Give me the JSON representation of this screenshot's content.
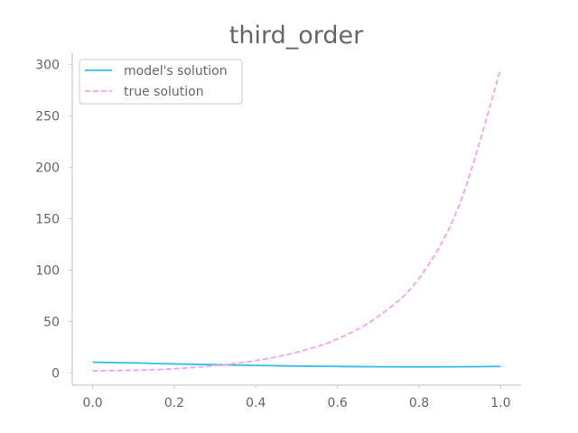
{
  "chart_data": {
    "type": "line",
    "title": "third_order",
    "xlabel": "",
    "ylabel": "",
    "xlim": [
      -0.05,
      1.05
    ],
    "ylim": [
      -12,
      312
    ],
    "xticks": [
      0.0,
      0.2,
      0.4,
      0.6,
      0.8,
      1.0
    ],
    "xtick_labels": [
      "0.0",
      "0.2",
      "0.4",
      "0.6",
      "0.8",
      "1.0"
    ],
    "yticks": [
      0,
      50,
      100,
      150,
      200,
      250,
      300
    ],
    "ytick_labels": [
      "0",
      "50",
      "100",
      "150",
      "200",
      "250",
      "300"
    ],
    "grid": false,
    "legend_position": "top-left",
    "series": [
      {
        "name": "model's solution",
        "color": "#33bbee",
        "style": "solid",
        "x": [
          0.0,
          0.1,
          0.2,
          0.3,
          0.4,
          0.5,
          0.6,
          0.7,
          0.8,
          0.9,
          1.0
        ],
        "y": [
          10.4,
          9.7,
          8.7,
          7.9,
          7.2,
          6.6,
          6.2,
          5.9,
          5.8,
          5.9,
          6.2
        ]
      },
      {
        "name": "true solution",
        "color": "#f5a0f0",
        "style": "dashed",
        "x": [
          0.0,
          0.1,
          0.2,
          0.3,
          0.4,
          0.5,
          0.6,
          0.7,
          0.8,
          0.9,
          1.0
        ],
        "y": [
          2.0,
          2.6,
          4.0,
          7.0,
          12.0,
          20.0,
          33.0,
          55.0,
          92.0,
          165.0,
          296.0
        ]
      }
    ]
  }
}
